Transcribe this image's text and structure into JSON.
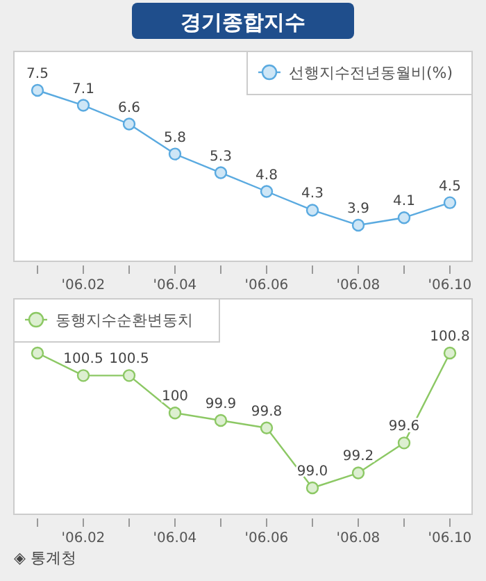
{
  "chart_data": [
    {
      "type": "line",
      "title": "경기종합지수",
      "categories": [
        null,
        "'06.02",
        null,
        "'06.04",
        null,
        "'06.06",
        null,
        "'06.08",
        null,
        "'06.10"
      ],
      "series": [
        {
          "name": "선행지수전년동월비(%)",
          "color": "#5aaae0",
          "values": [
            7.5,
            7.1,
            6.6,
            5.8,
            5.3,
            4.8,
            4.3,
            3.9,
            4.1,
            4.5
          ]
        }
      ],
      "data_labels": true,
      "marker": "circle",
      "legend": "top right",
      "tick_labels": "x"
    },
    {
      "type": "line",
      "categories": [
        null,
        "'06.02",
        null,
        "'06.04",
        null,
        "'06.06",
        null,
        "'06.08",
        null,
        "'06.10"
      ],
      "series": [
        {
          "name": "동행지수순환변동치",
          "color": "#8cc864",
          "values": [
            100.8,
            100.5,
            100.5,
            100,
            99.9,
            99.8,
            99.0,
            99.2,
            99.6,
            100.8
          ],
          "value_labels": [
            null,
            "100.5",
            "100.5",
            "100",
            "99.9",
            "99.8",
            "99.0",
            "99.2",
            "99.6",
            "100.8"
          ]
        }
      ],
      "marker": "circle",
      "legend": "top left",
      "tick_labels": "x",
      "annotations": [
        "◈ 통계청"
      ]
    }
  ]
}
